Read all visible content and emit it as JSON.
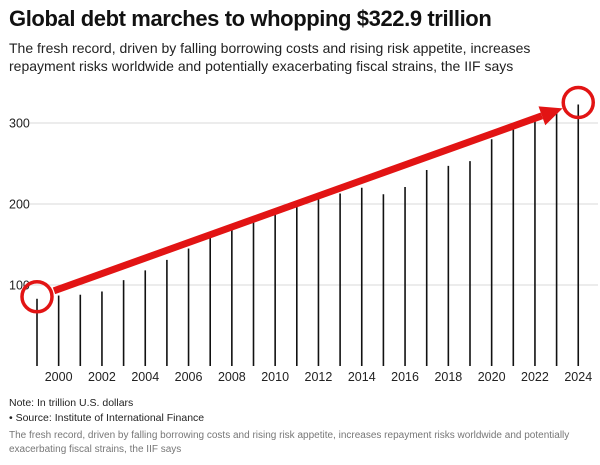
{
  "header": {
    "title": "Global debt marches to whopping $322.9 trillion",
    "subtitle": "The fresh record, driven by falling borrowing costs and rising risk appetite, increases repayment risks worldwide and potentially exacerbating fiscal strains, the IIF says"
  },
  "notes": {
    "unit_note": "Note: In trillion U.S. dollars",
    "source": "• Source: Institute of International Finance"
  },
  "caption": "The fresh record, driven by falling borrowing costs and rising risk appetite, increases repayment risks worldwide and potentially exacerbating fiscal strains, the IIF says",
  "colors": {
    "bars": "#111111",
    "grid": "#d9d9d9",
    "arrow": "#e21414",
    "circle": "#e21414"
  },
  "chart_data": {
    "type": "bar",
    "title": "Global debt marches to whopping $322.9 trillion",
    "xlabel": "",
    "ylabel": "",
    "x": [
      1999,
      2000,
      2001,
      2002,
      2003,
      2004,
      2005,
      2006,
      2007,
      2008,
      2009,
      2010,
      2011,
      2012,
      2013,
      2014,
      2015,
      2016,
      2017,
      2018,
      2019,
      2020,
      2021,
      2022,
      2023,
      2024
    ],
    "values": [
      83,
      87,
      88,
      92,
      106,
      118,
      131,
      145,
      158,
      172,
      185,
      193,
      199,
      208,
      213,
      220,
      212,
      221,
      242,
      247,
      253,
      280,
      297,
      302,
      312,
      322.9
    ],
    "x_tick_labels": [
      "2000",
      "2002",
      "2004",
      "2006",
      "2008",
      "2010",
      "2012",
      "2014",
      "2016",
      "2018",
      "2020",
      "2022",
      "2024"
    ],
    "y_tick_labels": [
      "100",
      "200",
      "300"
    ],
    "ylim": [
      0,
      330
    ],
    "grid": true,
    "annotations": [
      {
        "type": "circle",
        "x": 1999,
        "y": 83
      },
      {
        "type": "circle",
        "x": 2024,
        "y": 322.9
      },
      {
        "type": "arrow",
        "from": {
          "x": 1999,
          "y": 83
        },
        "to": {
          "x": 2023,
          "y": 318
        }
      }
    ]
  }
}
